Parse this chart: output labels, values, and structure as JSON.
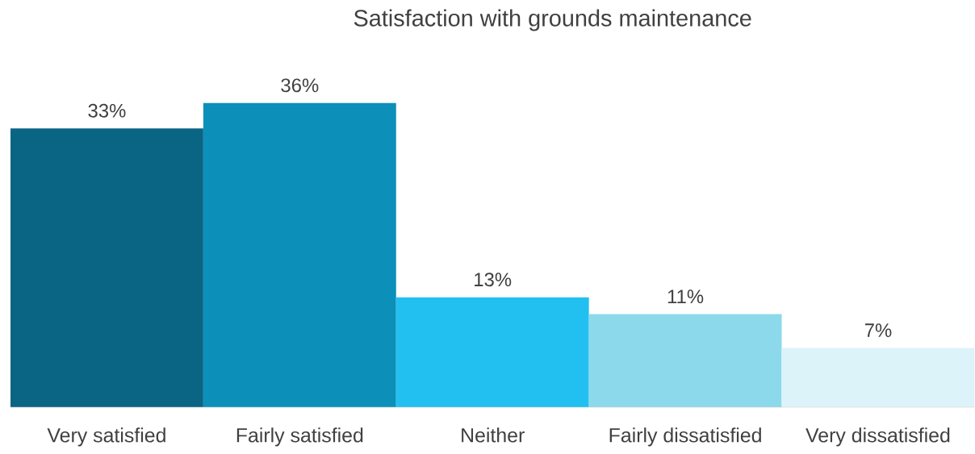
{
  "chart_data": {
    "type": "bar",
    "title": "Satisfaction with grounds maintenance",
    "categories": [
      "Very satisfied",
      "Fairly satisfied",
      "Neither",
      "Fairly dissatisfied",
      "Very dissatisfied"
    ],
    "values": [
      33,
      36,
      13,
      11,
      7
    ],
    "value_labels": [
      "33%",
      "36%",
      "13%",
      "11%",
      "7%"
    ],
    "colors": [
      "#0a6584",
      "#0c90b9",
      "#22c0f0",
      "#8dd9ec",
      "#ddf3fa"
    ]
  }
}
